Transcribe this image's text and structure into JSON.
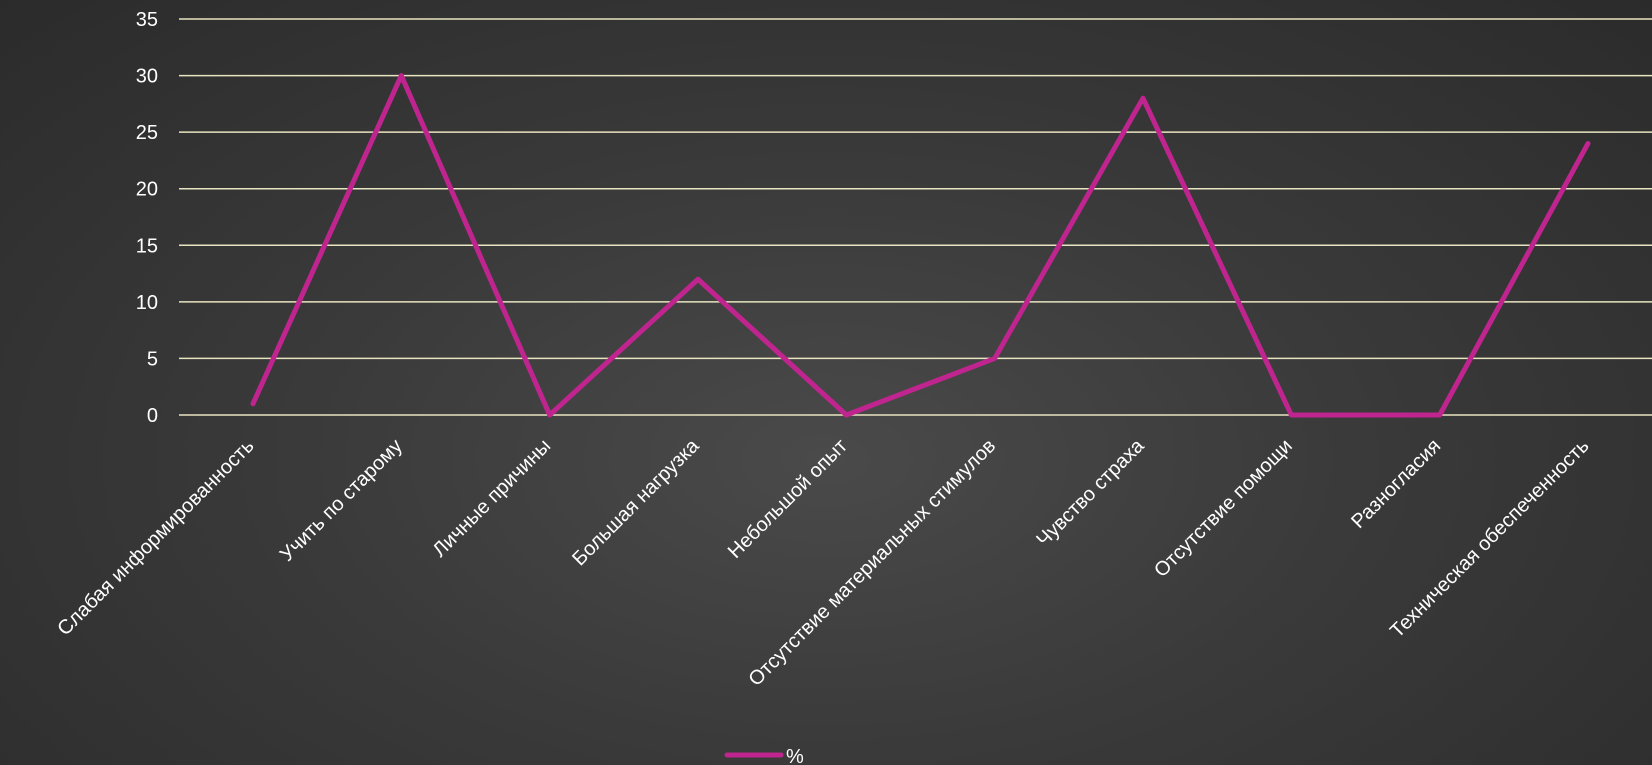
{
  "chart_data": {
    "type": "line",
    "categories": [
      "Слабая информированность",
      "Учить по старому",
      "Личные причины",
      "Большая нагрузка",
      "Небольшой опыт",
      "Отсутствие материальных стимулов",
      "Чувство страха",
      "Отсутствие помощи",
      "Разногласия",
      "Техническая обеспеченность"
    ],
    "series": [
      {
        "name": "%",
        "values": [
          1,
          30,
          0,
          12,
          0,
          5,
          28,
          0,
          0,
          24
        ]
      }
    ],
    "ylim": [
      0,
      35
    ],
    "yticks": [
      0,
      5,
      10,
      15,
      20,
      25,
      30,
      35
    ],
    "grid": true,
    "legend": "bottom",
    "colors": {
      "line": "#c0258f",
      "grid": "#e8e4c0",
      "text": "#ffffff"
    }
  }
}
